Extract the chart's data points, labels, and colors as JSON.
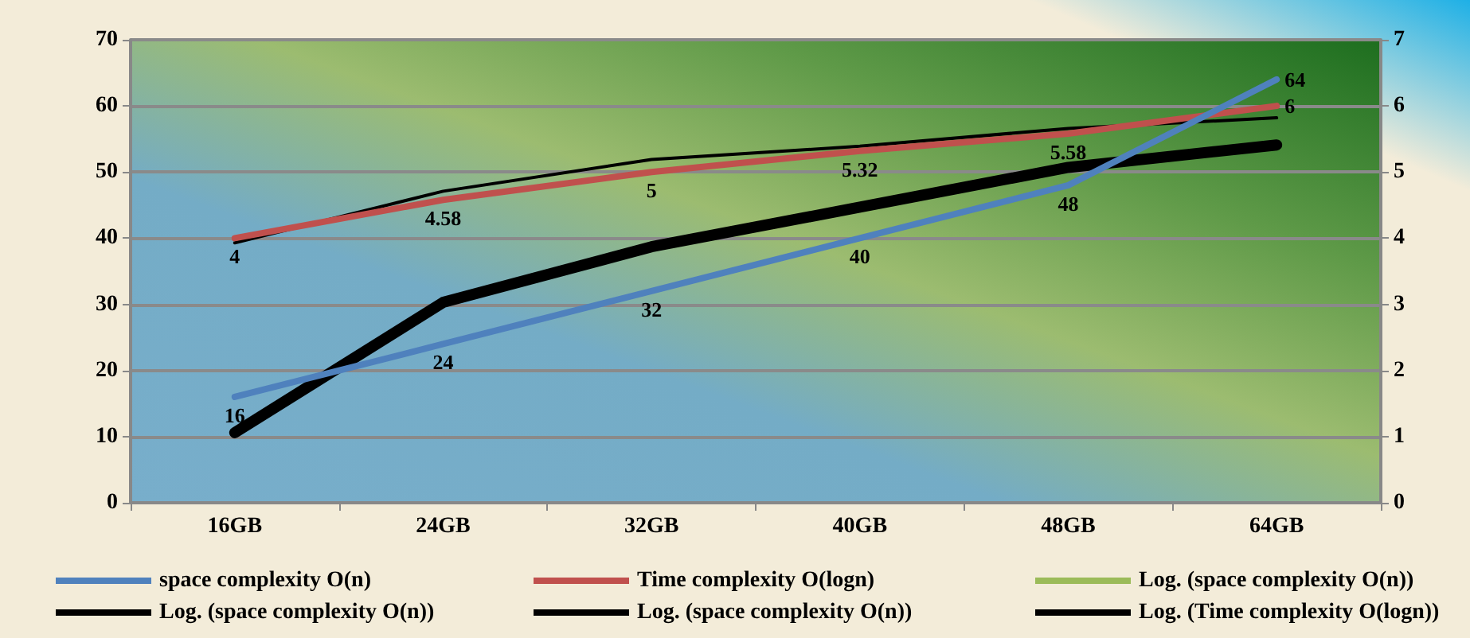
{
  "chart_data": {
    "type": "line",
    "categories": [
      "16GB",
      "24GB",
      "32GB",
      "40GB",
      "48GB",
      "64GB"
    ],
    "series": [
      {
        "name": "space complexity O(n)",
        "color": "#4f81bd",
        "values": [
          16,
          24,
          32,
          40,
          48,
          64
        ],
        "value_labels": [
          "16",
          "24",
          "32",
          "40",
          "48",
          "64"
        ]
      },
      {
        "name": "Time complexity O(logn)",
        "color": "#c0504d",
        "values": [
          4,
          4.58,
          5,
          5.32,
          5.58,
          6
        ],
        "axis": "y2",
        "value_labels": [
          "4",
          "4.58",
          "5",
          "5.32",
          "5.58",
          "6"
        ]
      },
      {
        "name": "Log. (space complexity O(n))",
        "color": "#9bbb59",
        "values": [
          null,
          null,
          null,
          null,
          null,
          null
        ]
      },
      {
        "name": "Log. (space complexity O(n))",
        "color": "#000000",
        "values": [
          10.6,
          30.3,
          38.7,
          44.7,
          50.7,
          54.1
        ]
      },
      {
        "name": "Log. (space complexity O(n))",
        "color": "#000000",
        "values": [
          null,
          null,
          null,
          null,
          null,
          null
        ]
      },
      {
        "name": "Log. (Time complexity O(logn))",
        "color": "#000000",
        "values": [
          3.93,
          4.71,
          5.19,
          5.39,
          5.66,
          5.82
        ],
        "axis": "y2"
      }
    ],
    "ylim": [
      0,
      70
    ],
    "yticks": [
      0,
      10,
      20,
      30,
      40,
      50,
      60,
      70
    ],
    "y2lim": [
      0,
      7
    ],
    "y2ticks": [
      0,
      1,
      2,
      3,
      4,
      5,
      6,
      7
    ],
    "grid": "y",
    "legend": "bottom",
    "marker": "none",
    "line_style": "solid"
  }
}
